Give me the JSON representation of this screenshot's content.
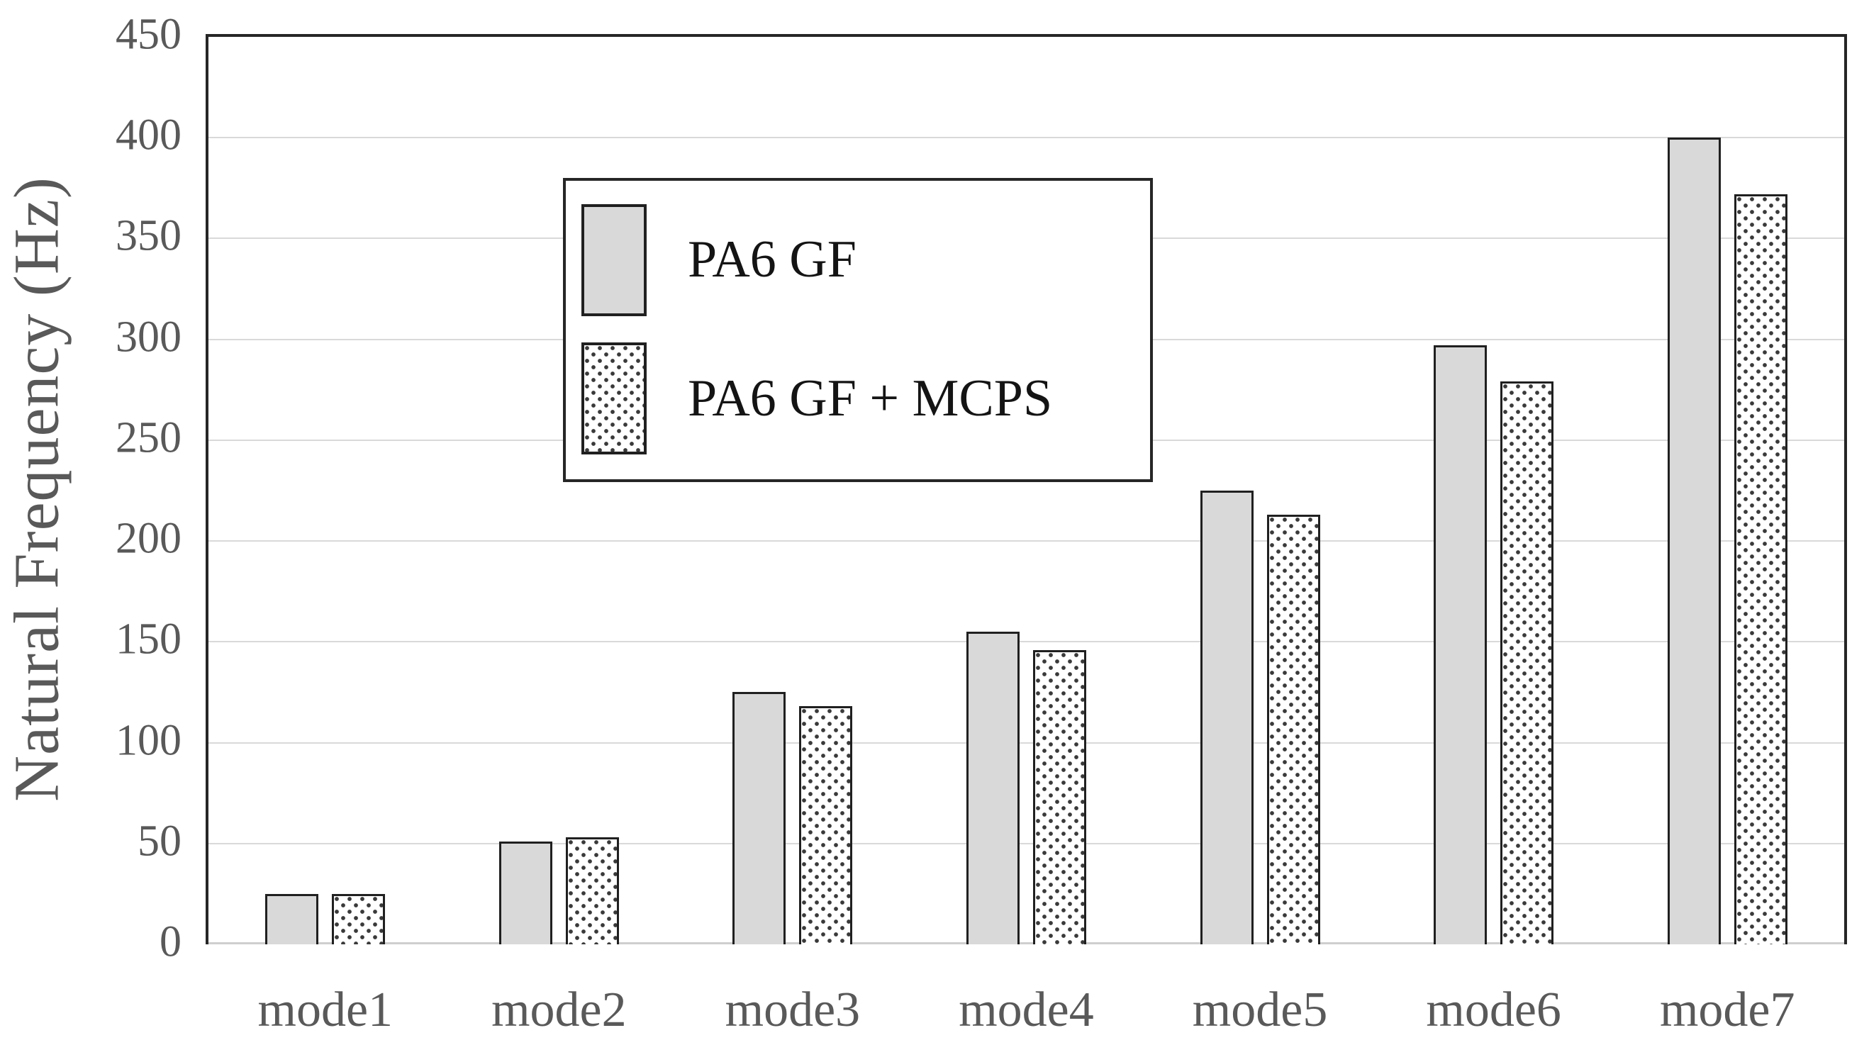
{
  "chart_data": {
    "type": "bar",
    "title": "",
    "xlabel": "",
    "ylabel": "Natural Frequency (Hz)",
    "categories": [
      "mode1",
      "mode2",
      "mode3",
      "mode4",
      "mode5",
      "mode6",
      "mode7"
    ],
    "series": [
      {
        "name": "PA6 GF",
        "pattern": "solid",
        "values": [
          25,
          51,
          125,
          155,
          225,
          297,
          400
        ]
      },
      {
        "name": "PA6 GF + MCPS",
        "pattern": "dotted",
        "values": [
          25,
          53,
          118,
          146,
          213,
          279,
          372
        ]
      }
    ],
    "ylim": [
      0,
      450
    ],
    "ytick_step": 50,
    "yticks": [
      0,
      50,
      100,
      150,
      200,
      250,
      300,
      350,
      400,
      450
    ],
    "grid": true,
    "legend_position": "top-left-inside"
  },
  "colors": {
    "background": "#ffffff",
    "bar_fill": "#d9d9d9",
    "bar_border": "#202020",
    "dot": "#3a3a3a",
    "grid": "#d9d9d9",
    "baseline": "#cfcfcf",
    "plot_border": "#262626",
    "axis_text": "#595959",
    "legend_text": "#141414"
  }
}
